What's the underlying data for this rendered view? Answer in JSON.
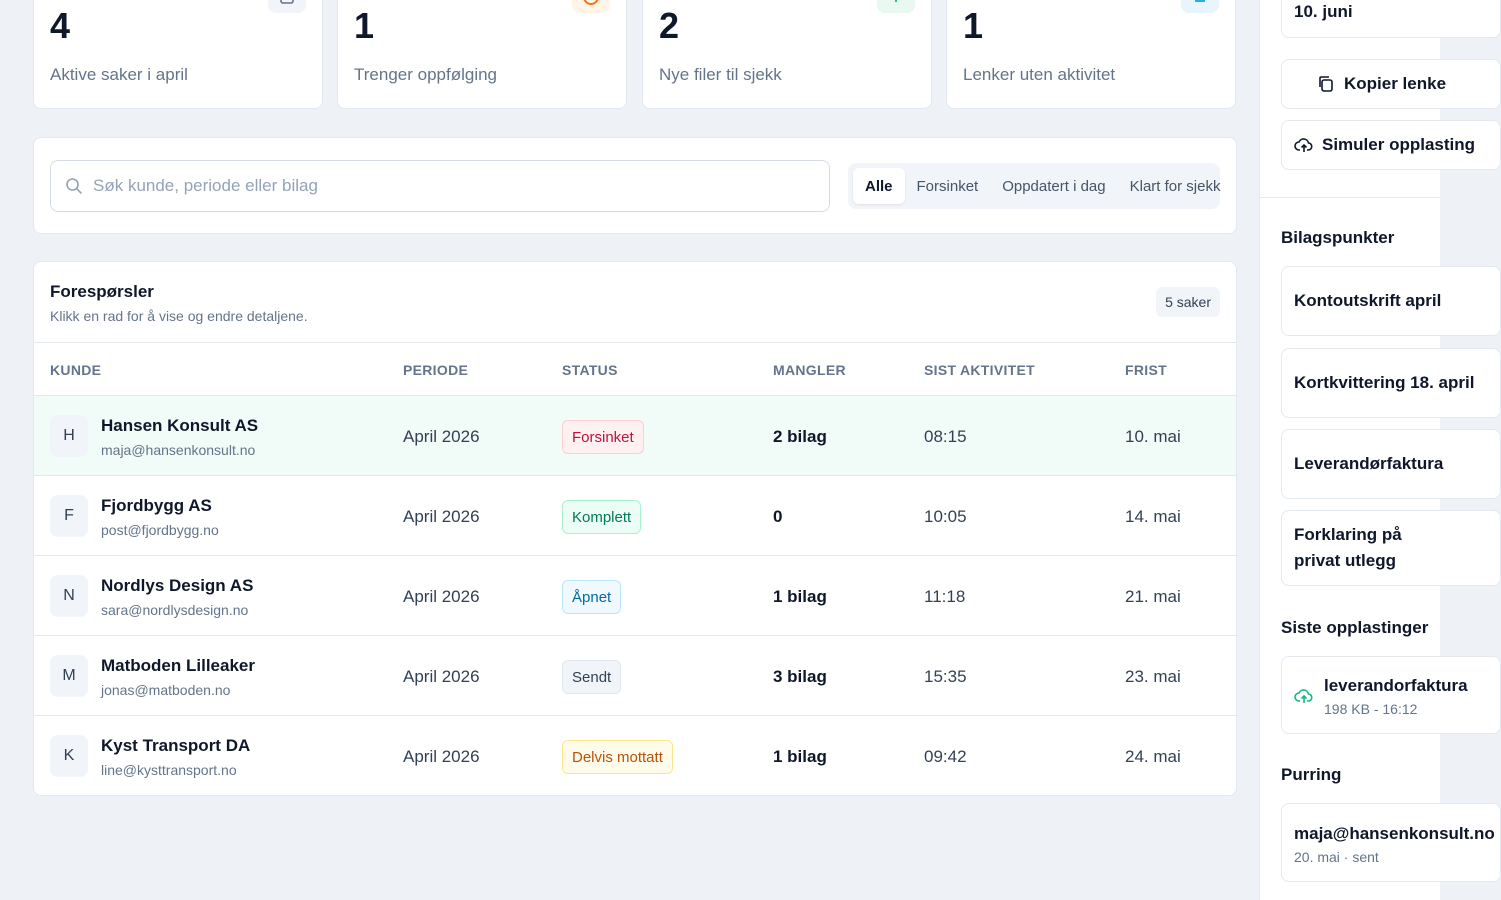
{
  "stats": [
    {
      "value": "4",
      "label": "Aktive saker i april",
      "icon": "calendar-icon",
      "icon_color": "#64748b",
      "icon_bg": "#f1f4f8"
    },
    {
      "value": "1",
      "label": "Trenger oppfølging",
      "icon": "alert-icon",
      "icon_color": "#f97316",
      "icon_bg": "#fff4e6"
    },
    {
      "value": "2",
      "label": "Nye filer til sjekk",
      "icon": "upload-icon",
      "icon_color": "#10b981",
      "icon_bg": "#e9f9f2"
    },
    {
      "value": "1",
      "label": "Lenker uten aktivitet",
      "icon": "link-icon",
      "icon_color": "#0ea5e9",
      "icon_bg": "#e8f5fc"
    }
  ],
  "search": {
    "placeholder": "Søk kunde, periode eller bilag",
    "value": ""
  },
  "filters": [
    {
      "label": "Alle",
      "active": true
    },
    {
      "label": "Forsinket",
      "active": false
    },
    {
      "label": "Oppdatert i dag",
      "active": false
    },
    {
      "label": "Klart for sjekk",
      "active": false
    }
  ],
  "table": {
    "title": "Forespørsler",
    "subtitle": "Klikk en rad for å vise og endre detaljene.",
    "count": "5 saker",
    "columns": [
      "KUNDE",
      "PERIODE",
      "STATUS",
      "MANGLER",
      "SIST AKTIVITET",
      "FRIST"
    ],
    "rows": [
      {
        "initial": "H",
        "name": "Hansen Konsult AS",
        "email": "maja@hansenkonsult.no",
        "period": "April 2026",
        "status": "Forsinket",
        "missing": "2 bilag",
        "activity": "08:15",
        "deadline": "10. mai",
        "selected": true
      },
      {
        "initial": "F",
        "name": "Fjordbygg AS",
        "email": "post@fjordbygg.no",
        "period": "April 2026",
        "status": "Komplett",
        "missing": "0",
        "activity": "10:05",
        "deadline": "14. mai",
        "selected": false
      },
      {
        "initial": "N",
        "name": "Nordlys Design AS",
        "email": "sara@nordlysdesign.no",
        "period": "April 2026",
        "status": "Åpnet",
        "missing": "1 bilag",
        "activity": "11:18",
        "deadline": "21. mai",
        "selected": false
      },
      {
        "initial": "M",
        "name": "Matboden Lilleaker",
        "email": "jonas@matboden.no",
        "period": "April 2026",
        "status": "Sendt",
        "missing": "3 bilag",
        "activity": "15:35",
        "deadline": "23. mai",
        "selected": false
      },
      {
        "initial": "K",
        "name": "Kyst Transport DA",
        "email": "line@kysttransport.no",
        "period": "April 2026",
        "status": "Delvis mottatt",
        "missing": "1 bilag",
        "activity": "09:42",
        "deadline": "24. mai",
        "selected": false
      }
    ]
  },
  "status_colors": {
    "Forsinket": {
      "text": "#be123c",
      "bg": "#fff1f2",
      "border": "#fecdd3"
    },
    "Komplett": {
      "text": "#047857",
      "bg": "#ecfdf5",
      "border": "#a7f3d0"
    },
    "Åpnet": {
      "text": "#0369a1",
      "bg": "#f0f9ff",
      "border": "#bae6fd"
    },
    "Sendt": {
      "text": "#334155",
      "bg": "#f1f5f9",
      "border": "#e2e8f0"
    },
    "Delvis mottatt": {
      "text": "#b45309",
      "bg": "#fffbeb",
      "border": "#fde68a"
    }
  },
  "sidebar": {
    "date": "10. juni",
    "copy_link": "Kopier lenke",
    "simulate_upload": "Simuler opplasting",
    "bilag_heading": "Bilagspunkter",
    "bilag_items": [
      "Kontoutskrift april",
      "Kortkvittering 18. april",
      "Leverandørfaktura",
      "Forklaring på privat utlegg"
    ],
    "uploads_heading": "Siste opplastinger",
    "upload": {
      "name": "leverandorfaktura",
      "meta": "198 KB - 16:12"
    },
    "purring_heading": "Purring",
    "purring": {
      "email": "maja@hansenkonsult.no",
      "meta": "20. mai · sent"
    }
  }
}
